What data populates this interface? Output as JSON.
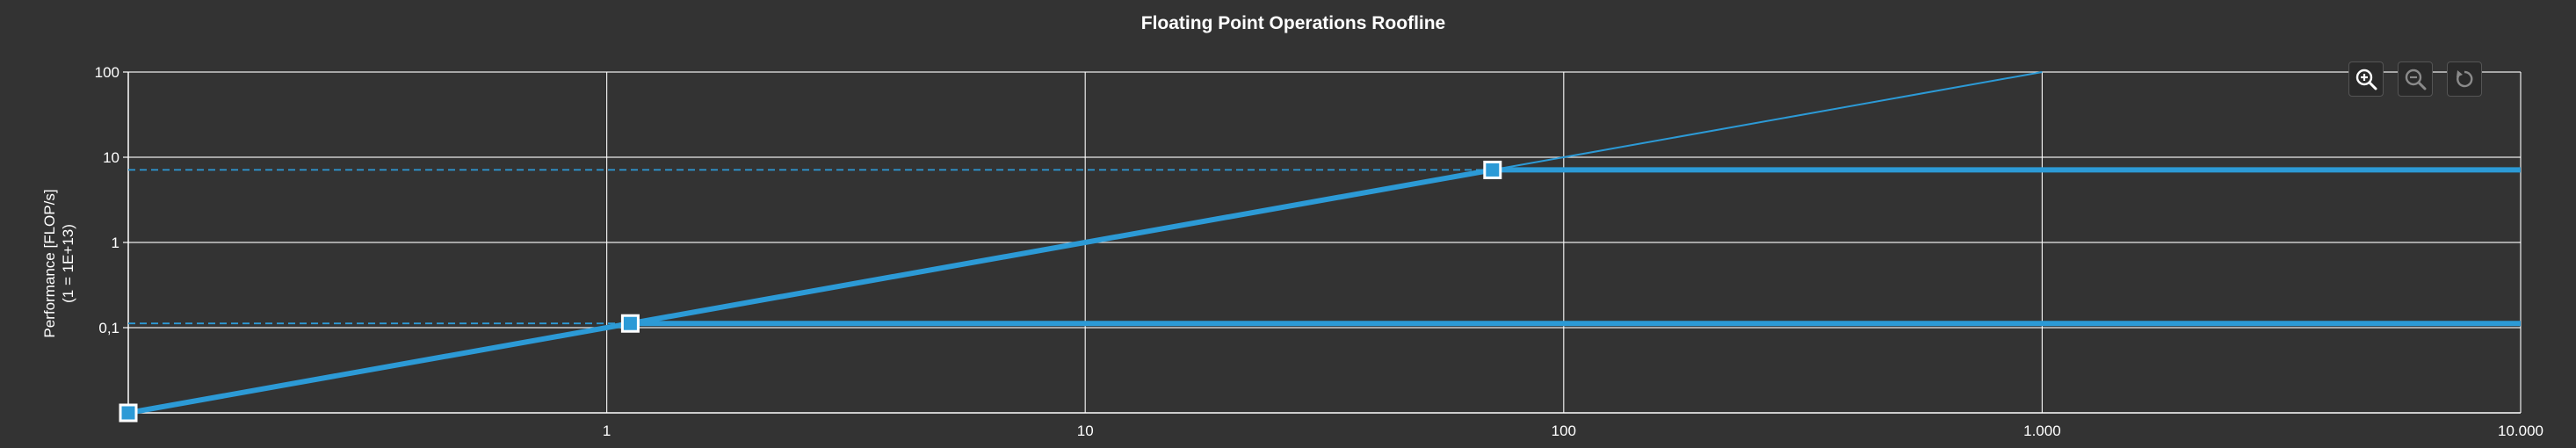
{
  "chart_data": {
    "type": "line",
    "title": "Floating Point Operations Roofline",
    "ylabel": "Performance [FLOP/s]",
    "ylabel_unit": "(1 = 1E+13)",
    "xlabel": "",
    "x_scale": "log",
    "y_scale": "log",
    "xlim": [
      0.1,
      10000
    ],
    "ylim": [
      0.01,
      100
    ],
    "x_ticks": [
      1,
      10,
      100,
      1000,
      10000
    ],
    "x_tick_labels": [
      "1",
      "10",
      "100",
      "1.000",
      "10.000"
    ],
    "y_ticks": [
      0.1,
      1,
      10,
      100
    ],
    "y_tick_labels": [
      "0,1",
      "1",
      "10",
      "100"
    ],
    "grid": true,
    "legend": "none",
    "colors": {
      "background": "#333333",
      "grid": "#ffffff",
      "series": "#2c9ad6",
      "marker_fill": "#2c9ad6",
      "marker_stroke": "#ffffff"
    },
    "series": [
      {
        "style": "thick-line",
        "x": [
          0.1,
          71,
          10000
        ],
        "y": [
          0.01,
          7.1,
          7.1
        ]
      },
      {
        "style": "thick-line",
        "x": [
          1.12,
          10000
        ],
        "y": [
          0.112,
          0.112
        ]
      },
      {
        "style": "thin-line",
        "x": [
          71,
          1000
        ],
        "y": [
          7.1,
          100
        ]
      },
      {
        "style": "dashed",
        "x": [
          0.1,
          71
        ],
        "y": [
          7.1,
          7.1
        ]
      },
      {
        "style": "dashed",
        "x": [
          0.1,
          1.12
        ],
        "y": [
          0.112,
          0.112
        ]
      }
    ],
    "points": [
      {
        "x": 71,
        "y": 7.1
      },
      {
        "x": 1.12,
        "y": 0.112
      },
      {
        "x": 0.1,
        "y": 0.01
      }
    ]
  },
  "toolbar": {
    "zoom_in_icon": "zoom-in-icon",
    "zoom_out_icon": "zoom-out-icon",
    "reset_icon": "reset-icon"
  }
}
